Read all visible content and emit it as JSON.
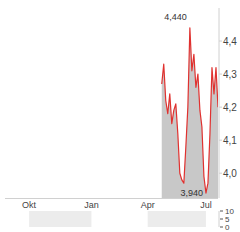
{
  "chart_data": [
    {
      "type": "line",
      "categories": [
        null,
        null,
        null,
        null,
        null,
        null,
        null,
        null,
        null,
        null,
        null,
        null,
        "Okt",
        null,
        null,
        null,
        null,
        null,
        null,
        null,
        null,
        null,
        null,
        null,
        null,
        null,
        null,
        null,
        null,
        null,
        null,
        null,
        null,
        null,
        null,
        null,
        null,
        null,
        null,
        null,
        null,
        null,
        null,
        "Jan",
        null,
        null,
        null,
        null,
        null,
        null,
        null,
        null,
        null,
        null,
        null,
        null,
        null,
        null,
        null,
        null,
        null,
        null,
        null,
        null,
        null,
        null,
        null,
        null,
        null,
        null,
        null,
        "Apr",
        null,
        null,
        null,
        null,
        null,
        null,
        null,
        null,
        null,
        null,
        null,
        null,
        null,
        null,
        null,
        null,
        null,
        null,
        null,
        null,
        null,
        null,
        null,
        null,
        null,
        null,
        null,
        null,
        "Jul",
        null,
        null,
        null,
        null,
        null,
        null
      ],
      "values": [
        null,
        null,
        null,
        null,
        null,
        null,
        null,
        null,
        null,
        null,
        null,
        null,
        null,
        null,
        null,
        null,
        null,
        null,
        null,
        null,
        null,
        null,
        null,
        null,
        null,
        null,
        null,
        null,
        null,
        null,
        null,
        null,
        null,
        null,
        null,
        null,
        null,
        null,
        null,
        null,
        null,
        null,
        null,
        null,
        null,
        null,
        null,
        null,
        null,
        null,
        null,
        null,
        null,
        null,
        null,
        null,
        null,
        null,
        null,
        null,
        null,
        null,
        null,
        null,
        null,
        null,
        null,
        null,
        null,
        null,
        null,
        null,
        null,
        null,
        null,
        null,
        null,
        null,
        4.27,
        4.33,
        4.22,
        4.18,
        4.24,
        4.15,
        4.19,
        4.21,
        4.12,
        4.0,
        3.98,
        3.97,
        4.08,
        4.2,
        4.44,
        4.31,
        4.36,
        4.26,
        4.3,
        4.19,
        4.14,
        3.99,
        3.94,
        3.97,
        4.12,
        4.32,
        4.24,
        4.32,
        4.2
      ],
      "color": "#e0312f",
      "ylim": [
        3.925,
        4.5
      ],
      "yticks": [
        {
          "value": 4.0,
          "label": "4,0"
        },
        {
          "value": 4.1,
          "label": "4,1"
        },
        {
          "value": 4.2,
          "label": "4,2"
        },
        {
          "value": 4.3,
          "label": "4,3"
        },
        {
          "value": 4.4,
          "label": "4,4"
        }
      ],
      "grid": false,
      "annotations": [
        {
          "text": "4,440",
          "value": 4.44
        },
        {
          "text": "3,940",
          "value": 3.94
        }
      ]
    },
    {
      "type": "bar",
      "values": [],
      "ylim": [
        0,
        10
      ],
      "yticks": [
        0,
        5,
        10
      ],
      "grid": false
    }
  ]
}
